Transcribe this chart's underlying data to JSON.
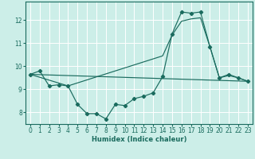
{
  "xlabel": "Humidex (Indice chaleur)",
  "bg_color": "#cceee8",
  "grid_color": "#ffffff",
  "line_color": "#1a6b5e",
  "xlim": [
    -0.5,
    23.5
  ],
  "ylim": [
    7.5,
    12.8
  ],
  "yticks": [
    8,
    9,
    10,
    11,
    12
  ],
  "xticks": [
    0,
    1,
    2,
    3,
    4,
    5,
    6,
    7,
    8,
    9,
    10,
    11,
    12,
    13,
    14,
    15,
    16,
    17,
    18,
    19,
    20,
    21,
    22,
    23
  ],
  "line1_x": [
    0,
    1,
    2,
    3,
    4,
    5,
    6,
    7,
    8,
    9,
    10,
    11,
    12,
    13,
    14,
    15,
    16,
    17,
    18,
    19,
    20,
    21,
    22,
    23
  ],
  "line1_y": [
    9.65,
    9.8,
    9.15,
    9.2,
    9.15,
    8.35,
    7.95,
    7.95,
    7.72,
    8.35,
    8.3,
    8.6,
    8.7,
    8.85,
    9.55,
    11.4,
    12.35,
    12.3,
    12.35,
    10.85,
    9.5,
    9.65,
    9.5,
    9.35
  ],
  "line2_x": [
    0,
    23
  ],
  "line2_y": [
    9.65,
    9.35
  ],
  "line3_x": [
    0,
    4,
    14,
    15,
    16,
    17,
    18,
    19,
    20,
    21,
    22,
    23
  ],
  "line3_y": [
    9.65,
    9.15,
    10.45,
    11.35,
    11.95,
    12.05,
    12.1,
    10.85,
    9.5,
    9.6,
    9.5,
    9.35
  ]
}
